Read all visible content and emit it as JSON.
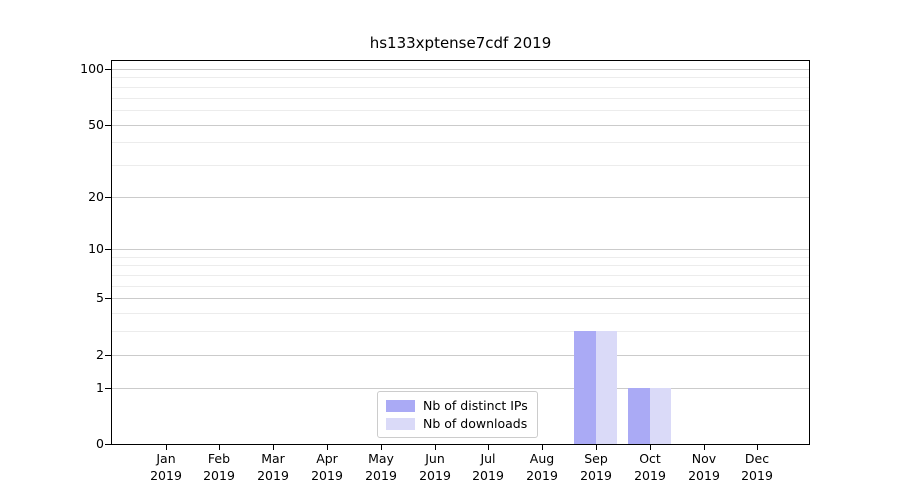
{
  "chart_data": {
    "type": "bar",
    "title": "hs133xptense7cdf 2019",
    "categories": [
      "Jan 2019",
      "Feb 2019",
      "Mar 2019",
      "Apr 2019",
      "May 2019",
      "Jun 2019",
      "Jul 2019",
      "Aug 2019",
      "Sep 2019",
      "Oct 2019",
      "Nov 2019",
      "Dec 2019"
    ],
    "x_tick_months": [
      "Jan",
      "Feb",
      "Mar",
      "Apr",
      "May",
      "Jun",
      "Jul",
      "Aug",
      "Sep",
      "Oct",
      "Nov",
      "Dec"
    ],
    "x_tick_year": "2019",
    "series": [
      {
        "name": "Nb of distinct IPs",
        "color": "#aaaaf5",
        "values": [
          0,
          0,
          0,
          0,
          0,
          0,
          0,
          0,
          3,
          1,
          0,
          0
        ]
      },
      {
        "name": "Nb of downloads",
        "color": "#dadaf8",
        "values": [
          0,
          0,
          0,
          0,
          0,
          0,
          0,
          0,
          3,
          1,
          0,
          0
        ]
      }
    ],
    "xlabel": "",
    "ylabel": "",
    "yscale": "log1p",
    "ylim": [
      0,
      100
    ],
    "y_major_ticks": [
      0,
      1,
      2,
      5,
      10,
      20,
      50,
      100
    ],
    "y_minor_gridlines": [
      3,
      4,
      6,
      7,
      8,
      9,
      30,
      40,
      60,
      70,
      80,
      90
    ],
    "grid": true,
    "legend_position": "lower-center-inside",
    "colors": {
      "major_grid": "#cbcbcb",
      "minor_grid": "#ececec",
      "axis": "#000000",
      "background": "#ffffff"
    }
  }
}
